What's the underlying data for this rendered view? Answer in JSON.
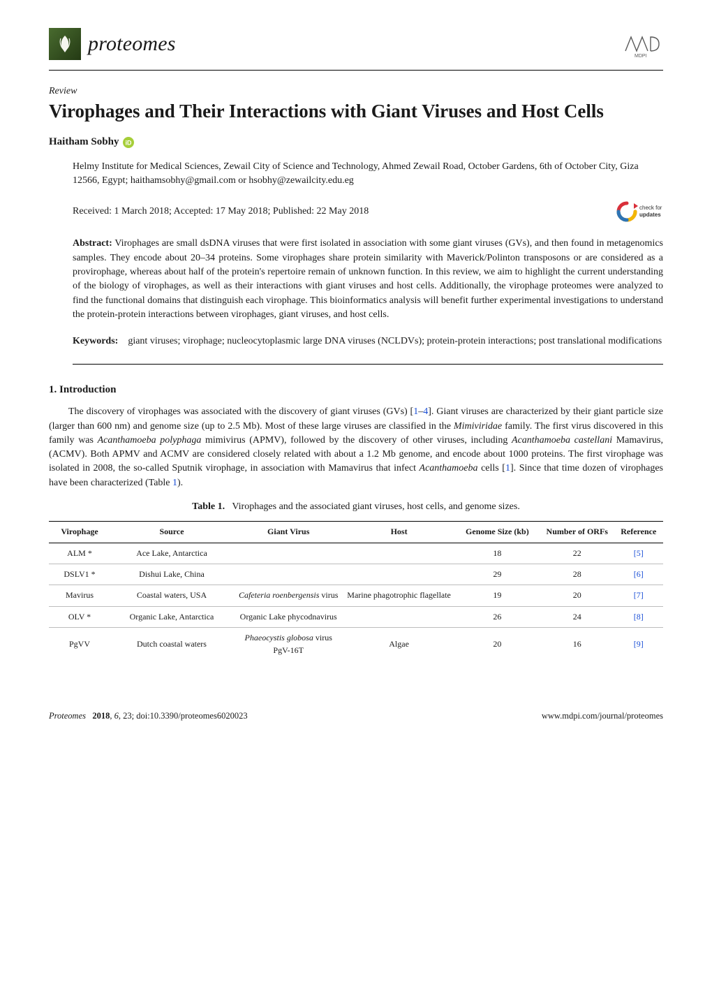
{
  "journal": {
    "name": "proteomes",
    "icon_bg_gradient_from": "#496b2f",
    "icon_bg_gradient_to": "#243a14",
    "publisher_logo_text": "MDPI"
  },
  "article": {
    "type": "Review",
    "title": "Virophages and Their Interactions with Giant Viruses and Host Cells",
    "author": "Haitham Sobhy",
    "orcid_present": true,
    "affiliation": "Helmy Institute for Medical Sciences, Zewail City of Science and Technology, Ahmed Zewail Road, October Gardens, 6th of October City, Giza 12566, Egypt; haithamsobhy@gmail.com or hsobhy@zewailcity.edu.eg",
    "dates_line": "Received: 1 March 2018; Accepted: 17 May 2018; Published: 22 May 2018",
    "check_for_updates_label": "check for updates"
  },
  "abstract": {
    "label": "Abstract:",
    "text": "Virophages are small dsDNA viruses that were first isolated in association with some giant viruses (GVs), and then found in metagenomics samples. They encode about 20–34 proteins. Some virophages share protein similarity with Maverick/Polinton transposons or are considered as a provirophage, whereas about half of the protein's repertoire remain of unknown function. In this review, we aim to highlight the current understanding of the biology of virophages, as well as their interactions with giant viruses and host cells. Additionally, the virophage proteomes were analyzed to find the functional domains that distinguish each virophage. This bioinformatics analysis will benefit further experimental investigations to understand the protein-protein interactions between virophages, giant viruses, and host cells."
  },
  "keywords": {
    "label": "Keywords:",
    "text": "giant viruses; virophage; nucleocytoplasmic large DNA viruses (NCLDVs); protein-protein interactions; post translational modifications"
  },
  "section1": {
    "heading": "1. Introduction",
    "para1_pre": "The discovery of virophages was associated with the discovery of giant viruses (GVs) [",
    "para1_ref1": "1",
    "para1_dash": "–",
    "para1_ref2": "4",
    "para1_mid": "]. Giant viruses are characterized by their giant particle size (larger than 600 nm) and genome size (up to 2.5 Mb). Most of these large viruses are classified in the ",
    "para1_family": "Mimiviridae",
    "para1_mid2": " family. The first virus discovered in this family was ",
    "para1_sp1": "Acanthamoeba polyphaga",
    "para1_mid3": " mimivirus (APMV), followed by the discovery of other viruses, including ",
    "para1_sp2": "Acanthamoeba castellani",
    "para1_mid4": " Mamavirus, (ACMV). Both APMV and ACMV are considered closely related with about a 1.2 Mb genome, and encode about 1000 proteins. The first virophage was isolated in 2008, the so-called Sputnik virophage, in association with Mamavirus that infect ",
    "para1_sp3": "Acanthamoeba",
    "para1_mid5": " cells [",
    "para1_ref3": "1",
    "para1_mid6": "]. Since that time dozen of virophages have been characterized (Table ",
    "para1_tbl": "1",
    "para1_end": ")."
  },
  "table1": {
    "caption_label": "Table 1.",
    "caption_text": "Virophages and the associated giant viruses, host cells, and genome sizes.",
    "columns": [
      "Virophage",
      "Source",
      "Giant Virus",
      "Host",
      "Genome Size (kb)",
      "Number of ORFs",
      "Reference"
    ],
    "col_widths_pct": [
      10,
      20,
      18,
      18,
      14,
      12,
      8
    ],
    "header_fontsize": 12,
    "body_fontsize": 12,
    "border_color": "#000000",
    "row_border_color": "#bdbdbd",
    "ref_color": "#1a4fd6",
    "rows": [
      {
        "virophage": "ALM *",
        "source": "Ace Lake, Antarctica",
        "giant_virus_html": "",
        "host": "",
        "genome": "18",
        "orfs": "22",
        "ref": "5"
      },
      {
        "virophage": "DSLV1 *",
        "source": "Dishui Lake, China",
        "giant_virus_html": "",
        "host": "",
        "genome": "29",
        "orfs": "28",
        "ref": "6"
      },
      {
        "virophage": "Mavirus",
        "source": "Coastal waters, USA",
        "giant_virus_html": "<span class=\"sci\">Cafeteria roenbergensis</span> virus",
        "host": "Marine phagotrophic flagellate",
        "genome": "19",
        "orfs": "20",
        "ref": "7"
      },
      {
        "virophage": "OLV *",
        "source": "Organic Lake, Antarctica",
        "giant_virus_html": "Organic Lake phycodnavirus",
        "host": "",
        "genome": "26",
        "orfs": "24",
        "ref": "8"
      },
      {
        "virophage": "PgVV",
        "source": "Dutch coastal waters",
        "giant_virus_html": "<span class=\"sci\">Phaeocystis globosa</span> virus PgV-16T",
        "host": "Algae",
        "genome": "20",
        "orfs": "16",
        "ref": "9"
      }
    ]
  },
  "footer": {
    "left_journal": "Proteomes",
    "left_year_vol": "2018",
    "left_issue": "6",
    "left_page": "23",
    "left_doi": "doi:10.3390/proteomes6020023",
    "right": "www.mdpi.com/journal/proteomes"
  },
  "colors": {
    "text": "#1a1a1a",
    "link": "#1a4fd6",
    "orcid_green": "#a6ce39",
    "updates_red": "#d9303a",
    "updates_yellow": "#f2b705",
    "updates_green": "#6fb24b",
    "updates_blue": "#2e74b5"
  }
}
